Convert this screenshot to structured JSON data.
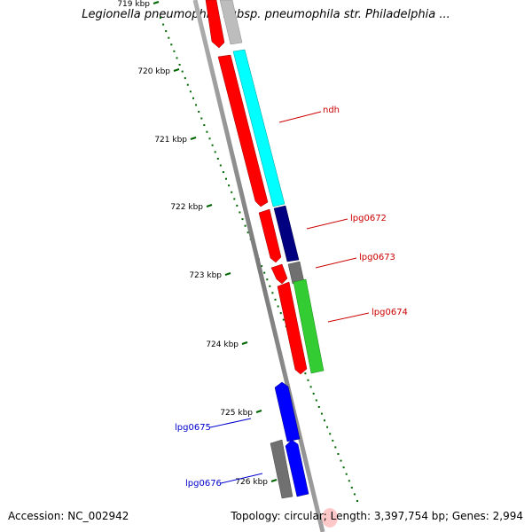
{
  "title": "Legionella pneumophila subsp. pneumophila str. Philadelphia ...",
  "footer": {
    "accession": "Accession: NC_002942",
    "summary": "Topology: circular; Length: 3,397,754 bp; Genes: 2,994"
  },
  "ruler": [
    {
      "label": "719 kbp",
      "faded": true
    },
    {
      "label": "720 kbp"
    },
    {
      "label": "721 kbp"
    },
    {
      "label": "722 kbp"
    },
    {
      "label": "723 kbp"
    },
    {
      "label": "724 kbp"
    },
    {
      "label": "725 kbp"
    },
    {
      "label": "726 kbp"
    }
  ],
  "gene_labels": [
    {
      "name": "ndh",
      "color": "#cc0000"
    },
    {
      "name": "lpg0672",
      "color": "#cc0000"
    },
    {
      "name": "lpg0673",
      "color": "#cc0000"
    },
    {
      "name": "lpg0674",
      "color": "#cc0000"
    },
    {
      "name": "lpg0675",
      "color": "#0000cc"
    },
    {
      "name": "lpg0676",
      "color": "#0000cc"
    }
  ],
  "colors": {
    "backbone": "#8c8c8c",
    "cds_forward_strand": "#ff0000",
    "cds_reverse_strand": "#0000ff",
    "ndh": "#00ffff",
    "lpg0672": "#000080",
    "lpg0673": "#707070",
    "lpg0674": "#33cc33",
    "ruler_tick": "#006600"
  }
}
